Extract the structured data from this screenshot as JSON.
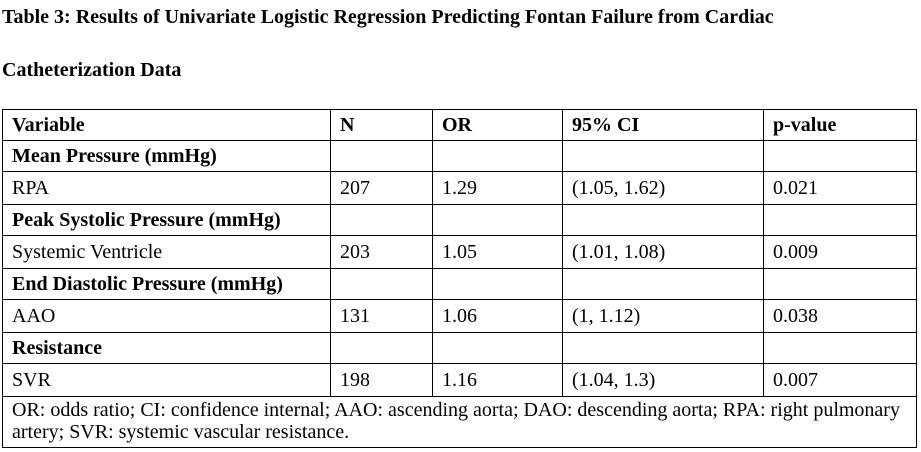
{
  "title": {
    "line1": "Table 3: Results of Univariate Logistic Regression Predicting Fontan Failure from Cardiac",
    "line2": "Catheterization Data"
  },
  "table": {
    "headers": {
      "variable": "Variable",
      "n": "N",
      "or": "OR",
      "ci": "95% CI",
      "p": "p-value"
    },
    "sections": [
      {
        "label": "Mean Pressure (mmHg)",
        "row": {
          "variable": "RPA",
          "n": "207",
          "or": "1.29",
          "ci": "(1.05, 1.62)",
          "p": "0.021"
        }
      },
      {
        "label": "Peak Systolic Pressure (mmHg)",
        "row": {
          "variable": "Systemic Ventricle",
          "n": "203",
          "or": "1.05",
          "ci": "(1.01, 1.08)",
          "p": "0.009"
        }
      },
      {
        "label": "End Diastolic Pressure (mmHg)",
        "row": {
          "variable": "AAO",
          "n": "131",
          "or": "1.06",
          "ci": "(1, 1.12)",
          "p": "0.038"
        }
      },
      {
        "label": "Resistance",
        "row": {
          "variable": "SVR",
          "n": "198",
          "or": "1.16",
          "ci": "(1.04, 1.3)",
          "p": "0.007"
        }
      }
    ],
    "footnote": "OR: odds ratio; CI: confidence internal; AAO: ascending aorta; DAO: descending aorta; RPA: right pulmonary artery; SVR: systemic vascular resistance."
  }
}
